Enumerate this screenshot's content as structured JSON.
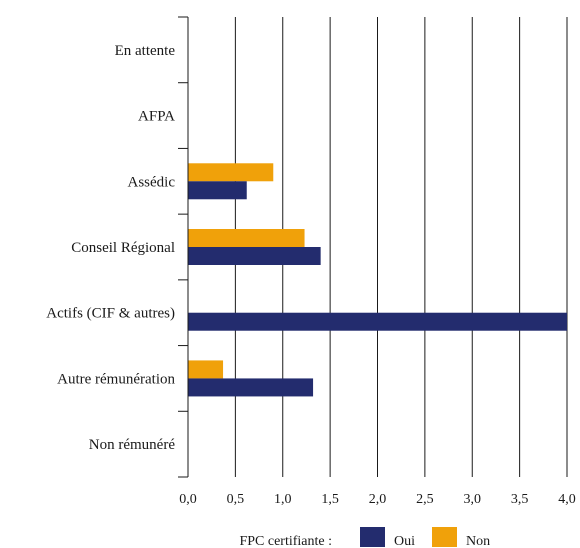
{
  "chart_data": {
    "type": "bar",
    "orientation": "horizontal",
    "categories": [
      "En attente",
      "AFPA",
      "Assédic",
      "Conseil Régional",
      "Actifs (CIF & autres)",
      "Autre rémunération",
      "Non rémunéré"
    ],
    "series": [
      {
        "name": "Non",
        "color": "#F0A10A",
        "values": [
          0,
          0,
          0.9,
          1.23,
          0,
          0.37,
          0
        ]
      },
      {
        "name": "Oui",
        "color": "#232C6E",
        "values": [
          0,
          0,
          0.62,
          1.4,
          4.0,
          1.32,
          0
        ]
      }
    ],
    "xlim": [
      0,
      4.0
    ],
    "xticks": [
      "0,0",
      "0,5",
      "1,0",
      "1,5",
      "2,0",
      "2,5",
      "3,0",
      "3,5",
      "4,0"
    ],
    "grid": true,
    "legend": {
      "title": "FPC certifiante :",
      "position": "bottom",
      "items": [
        {
          "label": "Oui",
          "color": "#232C6E"
        },
        {
          "label": "Non",
          "color": "#F0A10A"
        }
      ]
    }
  }
}
